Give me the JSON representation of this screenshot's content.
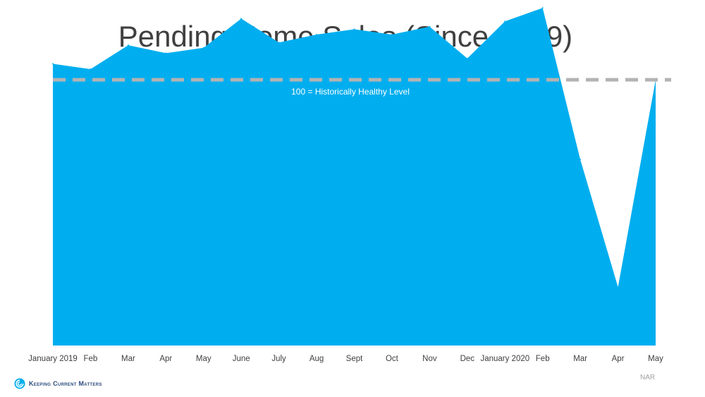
{
  "title": "Pending Home Sales (Since 2019)",
  "source": "NAR",
  "logo_text": "Keeping Current Matters",
  "colors": {
    "area": "#00AEEF",
    "reference": "#B3B3B3",
    "text": "#404040"
  },
  "chart_data": {
    "type": "area",
    "title": "Pending Home Sales (Since 2019)",
    "categories": [
      "January 2019",
      "Feb",
      "Mar",
      "Apr",
      "May",
      "June",
      "July",
      "Aug",
      "Sept",
      "Oct",
      "Nov",
      "Dec",
      "January 2020",
      "Feb",
      "Mar",
      "Apr",
      "May"
    ],
    "values": [
      106,
      104,
      113,
      110,
      112,
      123,
      114,
      117,
      119,
      117,
      120,
      108,
      122,
      127,
      70,
      22,
      100
    ],
    "ylim": [
      0,
      130
    ],
    "reference_line": {
      "value": 100,
      "label": "100 = Historically Healthy Level"
    },
    "xlabel": "",
    "ylabel": "",
    "grid": false
  }
}
